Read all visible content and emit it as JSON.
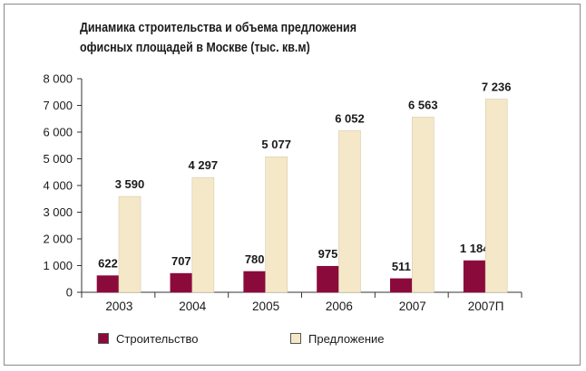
{
  "title": {
    "line1": "Динамика строительства и объема предложения",
    "line2": "офисных площадей в Москве (тыс. кв.м)"
  },
  "colors": {
    "construction": "#8b0a3c",
    "supply": "#f4e8c8",
    "axis": "#333333"
  },
  "chart_data": {
    "type": "bar",
    "title": "Динамика строительства и объема предложения офисных площадей в Москве (тыс. кв.м)",
    "categories": [
      "2003",
      "2004",
      "2005",
      "2006",
      "2007",
      "2007П"
    ],
    "series": [
      {
        "name": "Строительство",
        "values": [
          622,
          707,
          780,
          975,
          511,
          1184
        ],
        "labels": [
          "622",
          "707",
          "780",
          "975",
          "511",
          "1 184"
        ]
      },
      {
        "name": "Предложение",
        "values": [
          3590,
          4297,
          5077,
          6052,
          6563,
          7236
        ],
        "labels": [
          "3 590",
          "4 297",
          "5 077",
          "6 052",
          "6 563",
          "7 236"
        ]
      }
    ],
    "ylim": [
      0,
      8000
    ],
    "yticks": [
      0,
      1000,
      2000,
      3000,
      4000,
      5000,
      6000,
      7000,
      8000
    ],
    "ytick_labels": [
      "0",
      "1 000",
      "2 000",
      "3 000",
      "4 000",
      "5 000",
      "6 000",
      "7 000",
      "8 000"
    ],
    "grid": false,
    "legend_position": "bottom"
  }
}
